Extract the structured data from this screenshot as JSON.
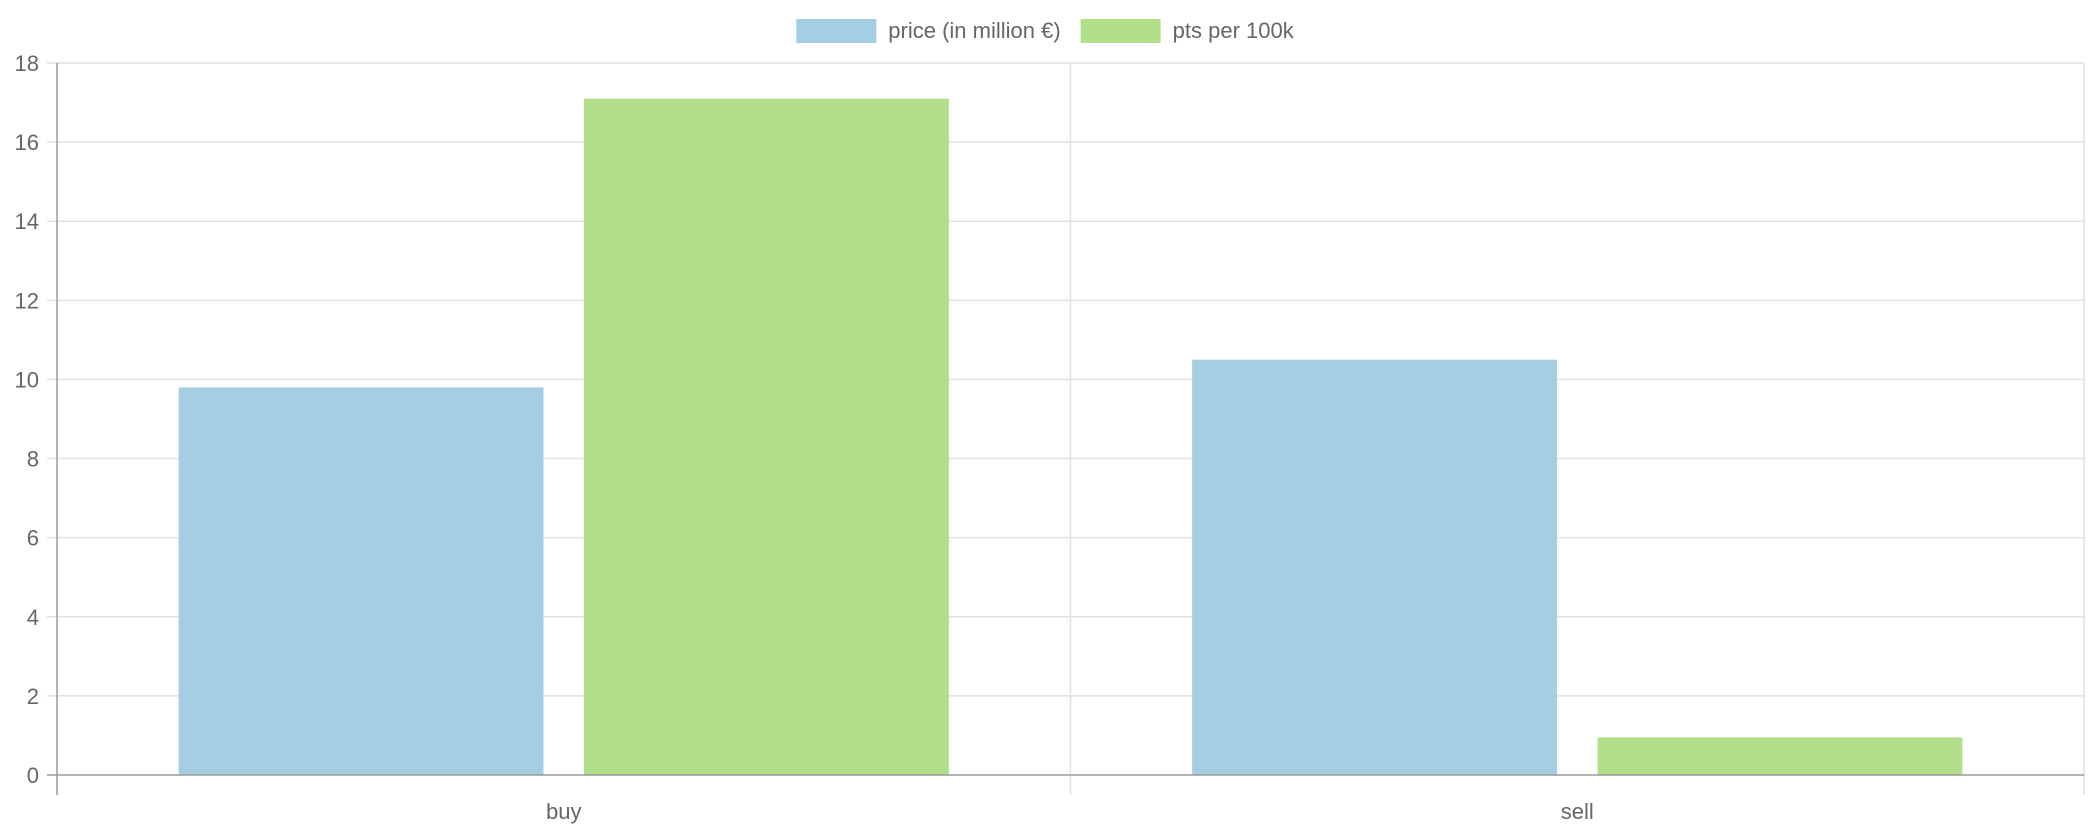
{
  "chart_data": {
    "type": "bar",
    "categories": [
      "buy",
      "sell"
    ],
    "series": [
      {
        "name": "price (in million €)",
        "values": [
          9.8,
          10.5
        ],
        "color": "#a6cee3"
      },
      {
        "name": "pts per 100k",
        "values": [
          17.1,
          0.95
        ],
        "color": "#b2df8a"
      }
    ],
    "title": "",
    "xlabel": "",
    "ylabel": "",
    "ylim": [
      0,
      18
    ],
    "yticks": [
      0,
      2,
      4,
      6,
      8,
      10,
      12,
      14,
      16,
      18
    ],
    "grid": true,
    "legend_position": "top-center"
  }
}
